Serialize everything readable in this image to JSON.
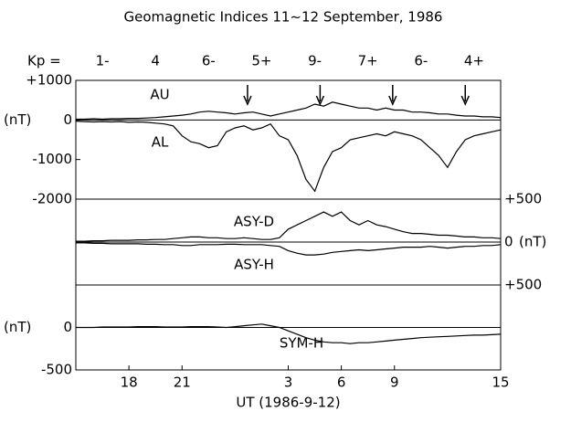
{
  "title": "Geomagnetic Indices  11~12 September, 1986",
  "kp": {
    "label": "Kp =",
    "values": [
      "1-",
      "4",
      "6-",
      "5+",
      "9-",
      "7+",
      "6-",
      "4+"
    ]
  },
  "arrows": [
    24.7,
    28.8,
    32.9,
    37
  ],
  "chart_data": [
    {
      "type": "line",
      "ylabel": "(nT)",
      "xlim": [
        15,
        39
      ],
      "ylim": [
        -2000,
        1000
      ],
      "yticks": [
        {
          "value": 1000,
          "label": "+1000"
        },
        0,
        -1000,
        -2000
      ],
      "x": [
        15,
        15.5,
        16,
        16.5,
        17,
        17.5,
        18,
        18.5,
        19,
        19.5,
        20,
        20.5,
        21,
        21.5,
        22,
        22.5,
        23,
        23.5,
        24,
        24.5,
        25,
        25.5,
        26,
        26.5,
        27,
        27.5,
        28,
        28.5,
        29,
        29.5,
        30,
        30.5,
        31,
        31.5,
        32,
        32.5,
        33,
        33.5,
        34,
        34.5,
        35,
        35.5,
        36,
        36.5,
        37,
        37.5,
        38,
        38.5,
        39
      ],
      "series": [
        {
          "name": "AU",
          "color": "#000000",
          "values": [
            20,
            20,
            30,
            20,
            30,
            30,
            40,
            40,
            50,
            60,
            80,
            100,
            120,
            150,
            200,
            220,
            200,
            180,
            150,
            180,
            200,
            150,
            100,
            150,
            200,
            250,
            300,
            400,
            350,
            450,
            400,
            350,
            300,
            300,
            250,
            300,
            250,
            250,
            200,
            200,
            180,
            150,
            150,
            120,
            100,
            100,
            80,
            80,
            60
          ]
        },
        {
          "name": "AL",
          "color": "#000000",
          "values": [
            -30,
            -40,
            -50,
            -40,
            -50,
            -40,
            -60,
            -50,
            -60,
            -80,
            -100,
            -150,
            -400,
            -550,
            -600,
            -700,
            -650,
            -300,
            -200,
            -150,
            -250,
            -200,
            -100,
            -400,
            -500,
            -900,
            -1500,
            -1800,
            -1200,
            -800,
            -700,
            -500,
            -450,
            -400,
            -350,
            -400,
            -300,
            -350,
            -400,
            -500,
            -700,
            -900,
            -1200,
            -800,
            -500,
            -400,
            -350,
            -300,
            -250
          ]
        }
      ]
    },
    {
      "type": "line",
      "ylabel": "(nT)",
      "xlim": [
        15,
        39
      ],
      "y2lim": [
        -500,
        500
      ],
      "y2ticks": [
        {
          "value": 500,
          "label": "+500"
        },
        0
      ],
      "x": [
        15,
        15.5,
        16,
        16.5,
        17,
        17.5,
        18,
        18.5,
        19,
        19.5,
        20,
        20.5,
        21,
        21.5,
        22,
        22.5,
        23,
        23.5,
        24,
        24.5,
        25,
        25.5,
        26,
        26.5,
        27,
        27.5,
        28,
        28.5,
        29,
        29.5,
        30,
        30.5,
        31,
        31.5,
        32,
        32.5,
        33,
        33.5,
        34,
        34.5,
        35,
        35.5,
        36,
        36.5,
        37,
        37.5,
        38,
        38.5,
        39
      ],
      "series": [
        {
          "name": "ASY-D",
          "color": "#000000",
          "axis": "y2",
          "values": [
            10,
            10,
            15,
            15,
            20,
            20,
            20,
            25,
            25,
            30,
            30,
            40,
            50,
            60,
            60,
            50,
            50,
            40,
            40,
            50,
            40,
            30,
            30,
            50,
            150,
            200,
            250,
            300,
            350,
            300,
            350,
            250,
            200,
            250,
            200,
            180,
            150,
            120,
            100,
            100,
            90,
            80,
            80,
            70,
            60,
            60,
            50,
            50,
            40
          ]
        },
        {
          "name": "ASY-H",
          "color": "#000000",
          "axis": "y2",
          "values": [
            -10,
            -10,
            -15,
            -15,
            -20,
            -20,
            -20,
            -20,
            -25,
            -25,
            -30,
            -30,
            -40,
            -40,
            -30,
            -30,
            -30,
            -25,
            -25,
            -30,
            -30,
            -30,
            -40,
            -50,
            -100,
            -130,
            -150,
            -150,
            -140,
            -120,
            -110,
            -100,
            -90,
            -100,
            -90,
            -80,
            -70,
            -60,
            -60,
            -60,
            -50,
            -60,
            -70,
            -60,
            -50,
            -50,
            -40,
            -40,
            -30
          ]
        }
      ]
    },
    {
      "type": "line",
      "ylabel": "(nT)",
      "xlabel": "UT (1986-9-12)",
      "xlim": [
        15,
        39
      ],
      "ylim": [
        -500,
        500
      ],
      "yticks": [
        0,
        -500
      ],
      "y2lim": [
        -500,
        500
      ],
      "y2ticks": [
        {
          "value": 500,
          "label": "+500"
        }
      ],
      "xticks": [
        {
          "value": 18,
          "label": "18"
        },
        {
          "value": 21,
          "label": "21"
        },
        {
          "value": 27,
          "label": "3"
        },
        {
          "value": 30,
          "label": "6"
        },
        {
          "value": 33,
          "label": "9"
        },
        {
          "value": 39,
          "label": "15"
        }
      ],
      "x": [
        15,
        15.5,
        16,
        16.5,
        17,
        17.5,
        18,
        18.5,
        19,
        19.5,
        20,
        20.5,
        21,
        21.5,
        22,
        22.5,
        23,
        23.5,
        24,
        24.5,
        25,
        25.5,
        26,
        26.5,
        27,
        27.5,
        28,
        28.5,
        29,
        29.5,
        30,
        30.5,
        31,
        31.5,
        32,
        32.5,
        33,
        33.5,
        34,
        34.5,
        35,
        35.5,
        36,
        36.5,
        37,
        37.5,
        38,
        38.5,
        39
      ],
      "series": [
        {
          "name": "SYM-H",
          "color": "#000000",
          "values": [
            0,
            0,
            0,
            5,
            5,
            5,
            5,
            10,
            10,
            10,
            5,
            5,
            5,
            10,
            10,
            10,
            5,
            0,
            10,
            20,
            30,
            40,
            20,
            0,
            -40,
            -80,
            -120,
            -150,
            -170,
            -180,
            -180,
            -190,
            -180,
            -180,
            -170,
            -160,
            -150,
            -140,
            -130,
            -120,
            -115,
            -110,
            -105,
            -100,
            -95,
            -90,
            -90,
            -85,
            -80
          ]
        }
      ]
    }
  ]
}
